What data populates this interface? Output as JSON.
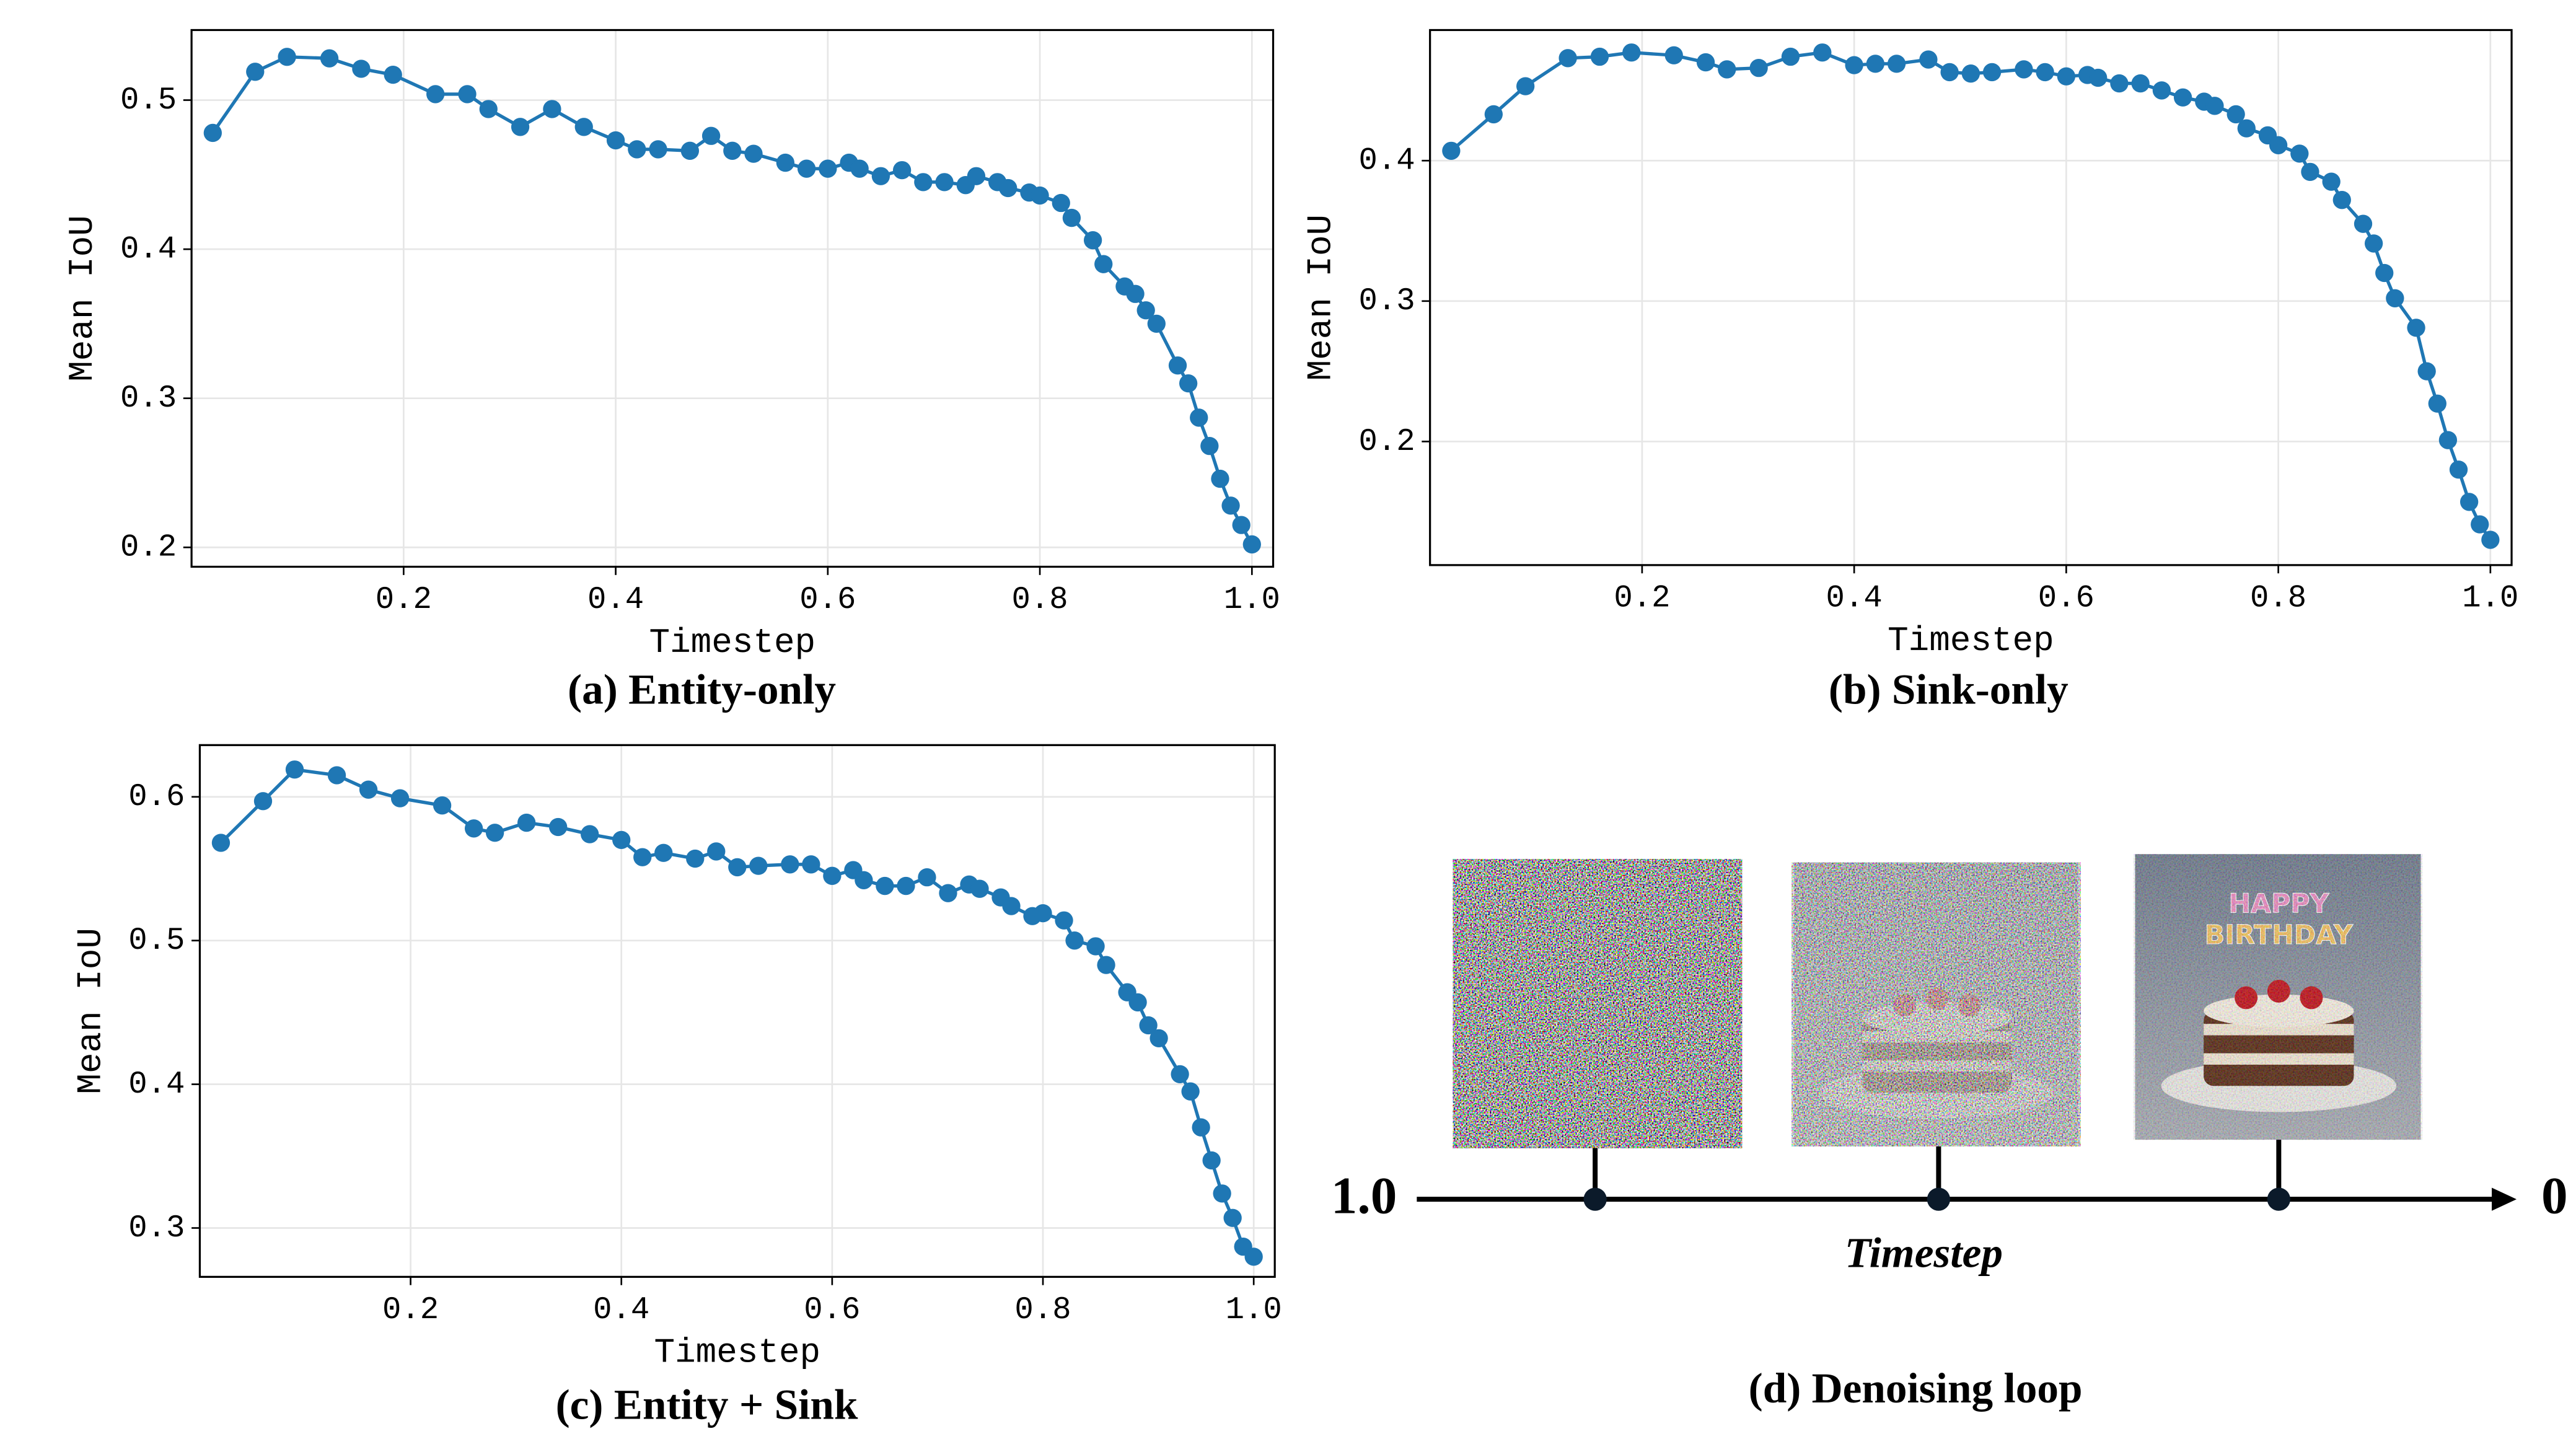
{
  "chart_data": [
    {
      "type": "line",
      "caption": "(a) Entity-only",
      "x_label": "Timestep",
      "y_label": "Mean IoU",
      "color": "#1f77b4",
      "grid": true,
      "x": [
        0.02,
        0.06,
        0.09,
        0.13,
        0.16,
        0.19,
        0.23,
        0.26,
        0.28,
        0.31,
        0.34,
        0.37,
        0.4,
        0.42,
        0.44,
        0.47,
        0.49,
        0.51,
        0.53,
        0.56,
        0.58,
        0.6,
        0.62,
        0.63,
        0.65,
        0.67,
        0.69,
        0.71,
        0.73,
        0.74,
        0.76,
        0.77,
        0.79,
        0.8,
        0.82,
        0.83,
        0.85,
        0.86,
        0.88,
        0.89,
        0.9,
        0.91,
        0.93,
        0.94,
        0.95,
        0.96,
        0.97,
        0.98,
        0.99,
        1.0
      ],
      "values": [
        0.478,
        0.519,
        0.529,
        0.528,
        0.521,
        0.517,
        0.504,
        0.504,
        0.494,
        0.482,
        0.494,
        0.482,
        0.473,
        0.467,
        0.467,
        0.466,
        0.476,
        0.466,
        0.464,
        0.458,
        0.454,
        0.454,
        0.458,
        0.454,
        0.449,
        0.453,
        0.445,
        0.445,
        0.443,
        0.449,
        0.445,
        0.441,
        0.438,
        0.436,
        0.431,
        0.421,
        0.406,
        0.39,
        0.375,
        0.37,
        0.359,
        0.35,
        0.322,
        0.31,
        0.287,
        0.268,
        0.246,
        0.228,
        0.215,
        0.202
      ],
      "xlim": [
        0,
        1.02
      ],
      "ylim": [
        0.187,
        0.547
      ],
      "xticks": [
        0.2,
        0.4,
        0.6,
        0.8,
        {
          "value": 1,
          "label": "1.0"
        }
      ],
      "yticks": [
        0.2,
        0.3,
        0.4,
        0.5
      ]
    },
    {
      "type": "line",
      "caption": "(b) Sink-only",
      "x_label": "Timestep",
      "y_label": "Mean IoU",
      "color": "#1f77b4",
      "grid": true,
      "x": [
        0.02,
        0.06,
        0.09,
        0.13,
        0.16,
        0.19,
        0.23,
        0.26,
        0.28,
        0.31,
        0.34,
        0.37,
        0.4,
        0.42,
        0.44,
        0.47,
        0.49,
        0.51,
        0.53,
        0.56,
        0.58,
        0.6,
        0.62,
        0.63,
        0.65,
        0.67,
        0.69,
        0.71,
        0.73,
        0.74,
        0.76,
        0.77,
        0.79,
        0.8,
        0.82,
        0.83,
        0.85,
        0.86,
        0.88,
        0.89,
        0.9,
        0.91,
        0.93,
        0.94,
        0.95,
        0.96,
        0.97,
        0.98,
        0.99,
        1.0
      ],
      "values": [
        0.407,
        0.433,
        0.453,
        0.473,
        0.474,
        0.477,
        0.475,
        0.47,
        0.465,
        0.466,
        0.474,
        0.477,
        0.468,
        0.469,
        0.469,
        0.472,
        0.463,
        0.462,
        0.463,
        0.465,
        0.463,
        0.46,
        0.461,
        0.459,
        0.455,
        0.455,
        0.45,
        0.445,
        0.442,
        0.439,
        0.433,
        0.423,
        0.418,
        0.411,
        0.405,
        0.392,
        0.385,
        0.372,
        0.355,
        0.341,
        0.32,
        0.302,
        0.281,
        0.25,
        0.227,
        0.201,
        0.18,
        0.157,
        0.141,
        0.13
      ],
      "xlim": [
        0,
        1.02
      ],
      "ylim": [
        0.112,
        0.493
      ],
      "xticks": [
        0.2,
        0.4,
        0.6,
        0.8,
        {
          "value": 1,
          "label": "1.0"
        }
      ],
      "yticks": [
        0.2,
        0.3,
        0.4
      ]
    },
    {
      "type": "line",
      "caption": "(c) Entity + Sink",
      "x_label": "Timestep",
      "y_label": "Mean IoU",
      "color": "#1f77b4",
      "grid": true,
      "x": [
        0.02,
        0.06,
        0.09,
        0.13,
        0.16,
        0.19,
        0.23,
        0.26,
        0.28,
        0.31,
        0.34,
        0.37,
        0.4,
        0.42,
        0.44,
        0.47,
        0.49,
        0.51,
        0.53,
        0.56,
        0.58,
        0.6,
        0.62,
        0.63,
        0.65,
        0.67,
        0.69,
        0.71,
        0.73,
        0.74,
        0.76,
        0.77,
        0.79,
        0.8,
        0.82,
        0.83,
        0.85,
        0.86,
        0.88,
        0.89,
        0.9,
        0.91,
        0.93,
        0.94,
        0.95,
        0.96,
        0.97,
        0.98,
        0.99,
        1.0
      ],
      "values": [
        0.568,
        0.597,
        0.619,
        0.615,
        0.605,
        0.599,
        0.594,
        0.578,
        0.575,
        0.582,
        0.579,
        0.574,
        0.57,
        0.558,
        0.561,
        0.557,
        0.562,
        0.551,
        0.552,
        0.553,
        0.553,
        0.545,
        0.549,
        0.542,
        0.538,
        0.538,
        0.544,
        0.533,
        0.539,
        0.536,
        0.53,
        0.524,
        0.517,
        0.519,
        0.514,
        0.5,
        0.496,
        0.483,
        0.464,
        0.457,
        0.441,
        0.432,
        0.407,
        0.395,
        0.37,
        0.347,
        0.324,
        0.307,
        0.287,
        0.28
      ],
      "xlim": [
        0,
        1.02
      ],
      "ylim": [
        0.266,
        0.636
      ],
      "xticks": [
        0.2,
        0.4,
        0.6,
        0.8,
        {
          "value": 1,
          "label": "1.0"
        }
      ],
      "yticks": [
        0.3,
        0.4,
        0.5,
        0.6
      ]
    }
  ],
  "diagram": {
    "start_label": "1.0",
    "end_label": "0",
    "axis_label": "Timestep",
    "caption": "(d) Denoising loop",
    "image_text": [
      "HAPPY",
      "BIRTHDAY"
    ]
  }
}
